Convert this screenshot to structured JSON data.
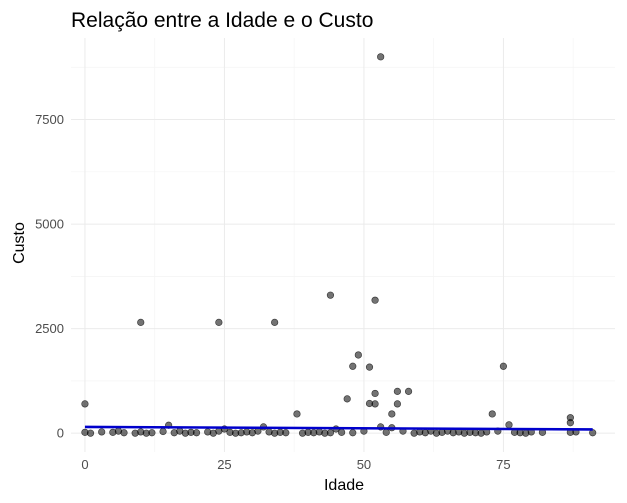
{
  "chart_data": {
    "type": "scatter",
    "title": "Relação entre a Idade e o Custo",
    "xlabel": "Idade",
    "ylabel": "Custo",
    "xlim": [
      -2.5,
      95
    ],
    "ylim": [
      -450,
      9450
    ],
    "x_ticks": [
      0,
      25,
      50,
      75
    ],
    "x_tick_labels": [
      "0",
      "25",
      "50",
      "75"
    ],
    "y_ticks": [
      0,
      2500,
      5000,
      7500
    ],
    "y_tick_labels": [
      "0",
      "2500",
      "5000",
      "7500"
    ],
    "grid": true,
    "legend": "none",
    "colors": {
      "points": "#000000",
      "trend": "#0000cc",
      "grid": "#ebebeb"
    },
    "points": [
      [
        0,
        700
      ],
      [
        0,
        20
      ],
      [
        1,
        0
      ],
      [
        3,
        30
      ],
      [
        5,
        20
      ],
      [
        6,
        50
      ],
      [
        7,
        10
      ],
      [
        9,
        0
      ],
      [
        10,
        2650
      ],
      [
        10,
        30
      ],
      [
        11,
        0
      ],
      [
        12,
        10
      ],
      [
        14,
        40
      ],
      [
        15,
        190
      ],
      [
        16,
        10
      ],
      [
        17,
        50
      ],
      [
        18,
        0
      ],
      [
        19,
        20
      ],
      [
        20,
        10
      ],
      [
        22,
        30
      ],
      [
        23,
        0
      ],
      [
        24,
        2650
      ],
      [
        24,
        50
      ],
      [
        25,
        100
      ],
      [
        26,
        20
      ],
      [
        27,
        0
      ],
      [
        28,
        10
      ],
      [
        29,
        30
      ],
      [
        30,
        10
      ],
      [
        31,
        50
      ],
      [
        32,
        150
      ],
      [
        33,
        30
      ],
      [
        34,
        2650
      ],
      [
        34,
        0
      ],
      [
        35,
        20
      ],
      [
        36,
        10
      ],
      [
        38,
        460
      ],
      [
        39,
        0
      ],
      [
        40,
        20
      ],
      [
        41,
        10
      ],
      [
        42,
        30
      ],
      [
        43,
        0
      ],
      [
        44,
        3300
      ],
      [
        44,
        10
      ],
      [
        45,
        100
      ],
      [
        46,
        20
      ],
      [
        47,
        820
      ],
      [
        48,
        1600
      ],
      [
        48,
        10
      ],
      [
        49,
        1870
      ],
      [
        50,
        50
      ],
      [
        51,
        1580
      ],
      [
        51,
        710
      ],
      [
        52,
        3180
      ],
      [
        52,
        950
      ],
      [
        52,
        700
      ],
      [
        53,
        9000
      ],
      [
        53,
        150
      ],
      [
        54,
        20
      ],
      [
        55,
        460
      ],
      [
        55,
        130
      ],
      [
        56,
        1000
      ],
      [
        56,
        700
      ],
      [
        57,
        50
      ],
      [
        58,
        1000
      ],
      [
        59,
        0
      ],
      [
        60,
        30
      ],
      [
        61,
        10
      ],
      [
        62,
        50
      ],
      [
        63,
        0
      ],
      [
        64,
        20
      ],
      [
        65,
        50
      ],
      [
        66,
        10
      ],
      [
        67,
        30
      ],
      [
        68,
        0
      ],
      [
        69,
        20
      ],
      [
        70,
        10
      ],
      [
        71,
        0
      ],
      [
        72,
        30
      ],
      [
        73,
        460
      ],
      [
        74,
        50
      ],
      [
        75,
        1600
      ],
      [
        76,
        200
      ],
      [
        77,
        20
      ],
      [
        78,
        10
      ],
      [
        79,
        0
      ],
      [
        80,
        30
      ],
      [
        82,
        20
      ],
      [
        87,
        250
      ],
      [
        87,
        370
      ],
      [
        87,
        20
      ],
      [
        88,
        30
      ],
      [
        91,
        10
      ]
    ],
    "trend_line": [
      [
        0,
        150
      ],
      [
        91,
        90
      ]
    ]
  }
}
